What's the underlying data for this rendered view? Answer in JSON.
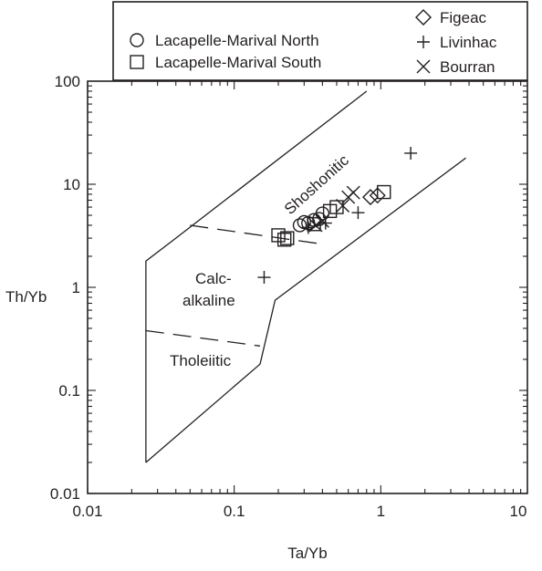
{
  "chart_data": {
    "type": "scatter",
    "title": "",
    "xlabel": "Ta/Yb",
    "ylabel": "Th/Yb",
    "x_scale": "log",
    "y_scale": "log",
    "xlim": [
      0.01,
      10
    ],
    "ylim": [
      0.01,
      100
    ],
    "x_ticks": [
      "0.01",
      "0.1",
      "1",
      "10"
    ],
    "y_ticks": [
      "100",
      "10",
      "1",
      "0.1",
      "0.01"
    ],
    "grid": false,
    "legend_position": "top",
    "legend_left": [
      "Lacapelle-Marival North",
      "Lacapelle-Marival South"
    ],
    "legend_right": [
      "Figeac",
      "Livinhac",
      "Bourran"
    ],
    "field_labels": {
      "shoshonitic": "Shoshonitic",
      "calc_line1": "Calc-",
      "calc_line2": "alkaline",
      "tholeiitic": "Tholeiitic"
    },
    "field_boundaries": [
      {
        "style": "solid",
        "points": [
          [
            0.025,
            0.02
          ],
          [
            0.025,
            1.8
          ],
          [
            0.04,
            3
          ],
          [
            0.8,
            80
          ]
        ]
      },
      {
        "style": "solid",
        "points": [
          [
            0.025,
            0.02
          ],
          [
            0.15,
            0.18
          ],
          [
            0.19,
            0.75
          ],
          [
            3.8,
            18
          ]
        ]
      },
      {
        "style": "dashed",
        "points": [
          [
            0.025,
            0.38
          ],
          [
            0.15,
            0.27
          ]
        ]
      },
      {
        "style": "dashed",
        "points": [
          [
            0.05,
            4.0
          ],
          [
            0.42,
            2.6
          ]
        ]
      }
    ],
    "series": [
      {
        "name": "Lacapelle-Marival North",
        "marker": "circle",
        "points": [
          [
            0.28,
            4.0
          ],
          [
            0.32,
            4.2
          ],
          [
            0.35,
            4.5
          ],
          [
            0.38,
            4.6
          ],
          [
            0.4,
            5.2
          ],
          [
            0.3,
            4.3
          ]
        ]
      },
      {
        "name": "Lacapelle-Marival South",
        "marker": "square",
        "points": [
          [
            0.2,
            3.2
          ],
          [
            0.22,
            2.9
          ],
          [
            0.23,
            3.0
          ],
          [
            0.35,
            4.1
          ],
          [
            0.45,
            5.5
          ],
          [
            0.5,
            6.0
          ],
          [
            1.05,
            8.4
          ]
        ]
      },
      {
        "name": "Figeac",
        "marker": "diamond",
        "points": [
          [
            0.85,
            7.5
          ],
          [
            0.95,
            7.8
          ]
        ]
      },
      {
        "name": "Livinhac",
        "marker": "plus",
        "points": [
          [
            0.16,
            1.25
          ],
          [
            1.6,
            20
          ],
          [
            0.7,
            5.3
          ],
          [
            0.42,
            4.2
          ],
          [
            0.32,
            3.8
          ]
        ]
      },
      {
        "name": "Bourran",
        "marker": "x",
        "points": [
          [
            0.6,
            7.5
          ],
          [
            0.65,
            8.3
          ],
          [
            0.55,
            6.2
          ],
          [
            0.36,
            4.0
          ],
          [
            0.4,
            4.4
          ]
        ]
      }
    ]
  }
}
